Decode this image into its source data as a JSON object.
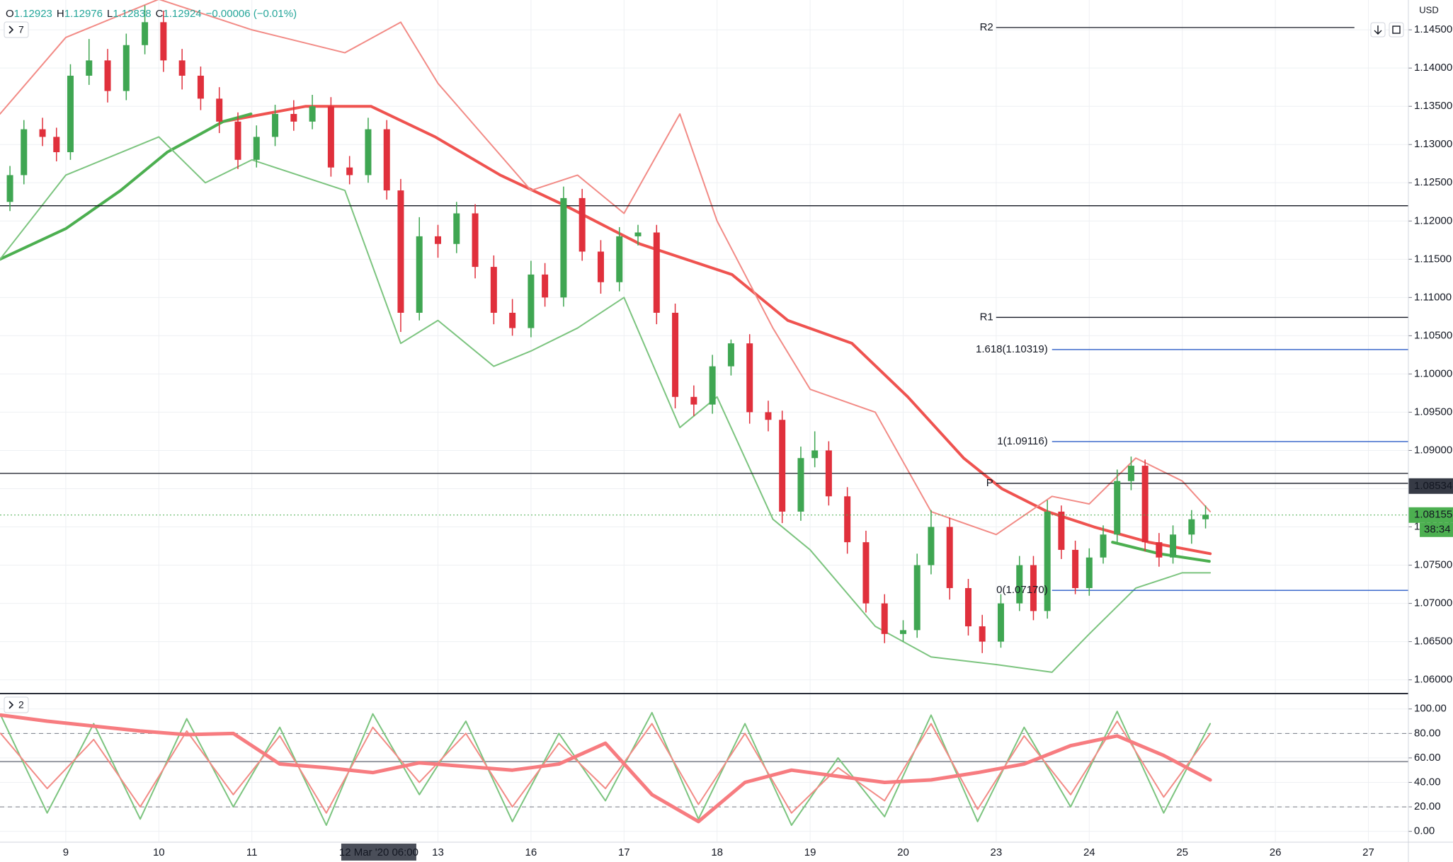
{
  "chart_data": {
    "type": "candlestick",
    "header": {
      "open_label": "O",
      "open": 1.12923,
      "high_label": "H",
      "high": 1.12976,
      "low_label": "L",
      "low": 1.12838,
      "close_label": "C",
      "close": 1.12924,
      "change": "−0.00006 (−0.01%)",
      "main_indicators": "7",
      "lower_indicators": "2"
    },
    "currency": "USD",
    "xlim": [
      -0.707,
      14.43
    ],
    "xticks": [
      {
        "value": 0,
        "label": "9"
      },
      {
        "value": 1,
        "label": "10"
      },
      {
        "value": 2,
        "label": "11"
      },
      {
        "value": 4,
        "label": "13"
      },
      {
        "value": 5,
        "label": "16"
      },
      {
        "value": 6,
        "label": "17"
      },
      {
        "value": 7,
        "label": "18"
      },
      {
        "value": 8,
        "label": "19"
      },
      {
        "value": 9,
        "label": "20"
      },
      {
        "value": 10,
        "label": "23"
      },
      {
        "value": 11,
        "label": "24"
      },
      {
        "value": 12,
        "label": "25"
      },
      {
        "value": 13,
        "label": "26"
      },
      {
        "value": 14,
        "label": "27"
      }
    ],
    "crosshair": {
      "x": 3.25,
      "label": "12 Mar '20  06:00"
    },
    "ylim": [
      1.0583,
      1.1489
    ],
    "yticks": [
      {
        "value": 1.06,
        "label": "1.06000"
      },
      {
        "value": 1.065,
        "label": "1.06500"
      },
      {
        "value": 1.07,
        "label": "1.07000"
      },
      {
        "value": 1.075,
        "label": "1.07500"
      },
      {
        "value": 1.08,
        "label": "1.08000"
      },
      {
        "value": 1.085,
        "label": "1.08500"
      },
      {
        "value": 1.09,
        "label": "1.09000"
      },
      {
        "value": 1.095,
        "label": "1.09500"
      },
      {
        "value": 1.1,
        "label": "1.10000"
      },
      {
        "value": 1.105,
        "label": "1.10500"
      },
      {
        "value": 1.11,
        "label": "1.11000"
      },
      {
        "value": 1.115,
        "label": "1.11500"
      },
      {
        "value": 1.12,
        "label": "1.12000"
      },
      {
        "value": 1.125,
        "label": "1.12500"
      },
      {
        "value": 1.13,
        "label": "1.13000"
      },
      {
        "value": 1.135,
        "label": "1.13500"
      },
      {
        "value": 1.14,
        "label": "1.14000"
      },
      {
        "value": 1.145,
        "label": "1.14500"
      }
    ],
    "grid": true,
    "up_color": "#3fa652",
    "down_color": "#e0303c",
    "candles": {
      "x": [
        -0.6,
        -0.45,
        -0.25,
        -0.1,
        0.05,
        0.25,
        0.45,
        0.65,
        0.85,
        1.05,
        1.25,
        1.45,
        1.65,
        1.85,
        2.05,
        2.25,
        2.45,
        2.65,
        2.85,
        3.05,
        3.25,
        3.45,
        3.6,
        3.8,
        4.0,
        4.2,
        4.4,
        4.6,
        4.8,
        5.0,
        5.15,
        5.35,
        5.55,
        5.75,
        5.95,
        6.15,
        6.35,
        6.55,
        6.75,
        6.95,
        7.15,
        7.35,
        7.55,
        7.7,
        7.9,
        8.05,
        8.2,
        8.4,
        8.6,
        8.8,
        9.0,
        9.15,
        9.3,
        9.5,
        9.7,
        9.85,
        10.05,
        10.25,
        10.4,
        10.55,
        10.7,
        10.85,
        11.0,
        11.15,
        11.3,
        11.45,
        11.6,
        11.75,
        11.9,
        12.1,
        12.25
      ],
      "open": [
        1.1225,
        1.126,
        1.132,
        1.131,
        1.129,
        1.139,
        1.141,
        1.137,
        1.143,
        1.146,
        1.141,
        1.139,
        1.136,
        1.133,
        1.128,
        1.131,
        1.134,
        1.133,
        1.135,
        1.127,
        1.126,
        1.132,
        1.124,
        1.108,
        1.118,
        1.117,
        1.121,
        1.114,
        1.108,
        1.106,
        1.113,
        1.11,
        1.123,
        1.116,
        1.112,
        1.118,
        1.1185,
        1.108,
        1.097,
        1.096,
        1.101,
        1.104,
        1.095,
        1.094,
        1.082,
        1.089,
        1.09,
        1.084,
        1.078,
        1.07,
        1.066,
        1.0665,
        1.075,
        1.08,
        1.072,
        1.067,
        1.065,
        1.07,
        1.075,
        1.069,
        1.082,
        1.077,
        1.072,
        1.076,
        1.079,
        1.086,
        1.088,
        1.078,
        1.076,
        1.079,
        1.081
      ],
      "high": [
        1.1272,
        1.1332,
        1.1335,
        1.1322,
        1.1405,
        1.1438,
        1.1425,
        1.1445,
        1.1482,
        1.1475,
        1.1425,
        1.1402,
        1.1375,
        1.1342,
        1.1325,
        1.1352,
        1.1358,
        1.1365,
        1.1362,
        1.1285,
        1.1335,
        1.1332,
        1.1255,
        1.1205,
        1.1195,
        1.1225,
        1.1222,
        1.1155,
        1.1098,
        1.1148,
        1.1145,
        1.1245,
        1.1242,
        1.1175,
        1.1192,
        1.1195,
        1.1195,
        1.1092,
        1.0985,
        1.1025,
        1.1045,
        1.1052,
        1.0965,
        1.0952,
        1.0905,
        1.0925,
        1.0912,
        1.0852,
        1.0795,
        1.0712,
        1.0678,
        1.0765,
        1.0822,
        1.0812,
        1.0732,
        1.0685,
        1.0712,
        1.0762,
        1.0762,
        1.0835,
        1.0828,
        1.0782,
        1.0772,
        1.0802,
        1.0875,
        1.0892,
        1.0888,
        1.0792,
        1.0802,
        1.0822,
        1.0828
      ],
      "low": [
        1.1213,
        1.1248,
        1.1298,
        1.1278,
        1.128,
        1.1378,
        1.1355,
        1.1358,
        1.1418,
        1.1395,
        1.1372,
        1.1345,
        1.1315,
        1.1268,
        1.127,
        1.1298,
        1.1318,
        1.132,
        1.1258,
        1.1248,
        1.125,
        1.1228,
        1.1055,
        1.107,
        1.1152,
        1.1158,
        1.1125,
        1.1065,
        1.105,
        1.1048,
        1.1088,
        1.1088,
        1.1148,
        1.1105,
        1.1108,
        1.1168,
        1.1065,
        1.0955,
        1.0945,
        1.0948,
        1.0998,
        1.0935,
        1.0925,
        1.0805,
        1.0808,
        1.0878,
        1.0828,
        1.0765,
        1.0688,
        1.0648,
        1.065,
        1.0655,
        1.0738,
        1.0705,
        1.0658,
        1.0635,
        1.0642,
        1.069,
        1.0678,
        1.068,
        1.0758,
        1.0712,
        1.071,
        1.0752,
        1.078,
        1.0848,
        1.0768,
        1.0748,
        1.0752,
        1.0778,
        1.0798
      ],
      "close": [
        1.126,
        1.132,
        1.131,
        1.129,
        1.139,
        1.141,
        1.137,
        1.143,
        1.146,
        1.141,
        1.139,
        1.136,
        1.133,
        1.128,
        1.131,
        1.134,
        1.133,
        1.135,
        1.127,
        1.126,
        1.132,
        1.124,
        1.108,
        1.118,
        1.117,
        1.121,
        1.114,
        1.108,
        1.106,
        1.113,
        1.11,
        1.123,
        1.116,
        1.112,
        1.118,
        1.1185,
        1.108,
        1.097,
        1.096,
        1.101,
        1.104,
        1.095,
        1.094,
        1.082,
        1.089,
        1.09,
        1.084,
        1.078,
        1.07,
        1.066,
        1.0665,
        1.075,
        1.08,
        1.072,
        1.067,
        1.065,
        1.07,
        1.075,
        1.069,
        1.082,
        1.077,
        1.072,
        1.076,
        1.079,
        1.086,
        1.088,
        1.078,
        1.076,
        1.079,
        1.081,
        1.0816
      ]
    },
    "lines": [
      {
        "color": "#ef5350",
        "width": 4,
        "x": [
          1.69,
          2.58,
          3.28,
          3.97,
          4.67,
          5.37,
          6.17,
          7.16,
          7.76,
          8.45,
          9.05,
          9.65,
          10.06,
          10.55,
          11.05,
          11.64,
          12.3
        ],
        "values": [
          1.133,
          1.135,
          1.135,
          1.131,
          1.126,
          1.122,
          1.117,
          1.113,
          1.107,
          1.104,
          1.097,
          1.089,
          1.085,
          1.082,
          1.08,
          1.078,
          1.0765
        ]
      },
      {
        "color": "#4caf50",
        "width": 4,
        "x": [
          -0.707,
          0,
          0.59,
          1.09,
          1.69,
          1.99
        ],
        "values": [
          1.115,
          1.119,
          1.124,
          1.129,
          1.133,
          1.134
        ]
      },
      {
        "color": "#4caf50",
        "width": 4,
        "x": [
          11.25,
          11.75,
          12.29
        ],
        "values": [
          1.078,
          1.0765,
          1.0755
        ]
      },
      {
        "color": "#f28b86",
        "width": 2,
        "x": [
          -0.707,
          0,
          1,
          2,
          3,
          3.6,
          4,
          5,
          5.5,
          6,
          6.6,
          7,
          7.6,
          8,
          8.7,
          9.3,
          10,
          10.6,
          11,
          11.5,
          12,
          12.3
        ],
        "values": [
          1.134,
          1.144,
          1.149,
          1.145,
          1.142,
          1.146,
          1.138,
          1.124,
          1.126,
          1.121,
          1.134,
          1.12,
          1.106,
          1.098,
          1.095,
          1.082,
          1.079,
          1.084,
          1.083,
          1.089,
          1.086,
          1.082
        ]
      },
      {
        "color": "#7cc47f",
        "width": 2,
        "x": [
          -0.707,
          0,
          1,
          1.5,
          2,
          3,
          3.6,
          4,
          4.6,
          5,
          5.5,
          6,
          6.6,
          7,
          7.6,
          8,
          8.7,
          9.3,
          10,
          10.6,
          11,
          11.5,
          12,
          12.3
        ],
        "values": [
          1.115,
          1.126,
          1.131,
          1.125,
          1.128,
          1.124,
          1.104,
          1.107,
          1.101,
          1.103,
          1.106,
          1.11,
          1.093,
          1.097,
          1.081,
          1.077,
          1.067,
          1.063,
          1.062,
          1.061,
          1.066,
          1.072,
          1.074,
          1.074
        ]
      }
    ],
    "hlines": [
      {
        "value": 1.122,
        "color": "#131722"
      },
      {
        "value": 1.087,
        "color": "#131722"
      }
    ],
    "pivots": [
      {
        "name": "R2",
        "value": 1.1453,
        "to": 13.85
      },
      {
        "name": "R1",
        "value": 1.1074,
        "to": 14.43
      },
      {
        "name": "P",
        "value": 1.0857,
        "to": 14.43
      }
    ],
    "fib": [
      {
        "value": 1.10319,
        "label": "1.618(1.10319)"
      },
      {
        "value": 1.09116,
        "label": "1(1.09116)"
      },
      {
        "value": 1.0717,
        "label": "0(1.07170)"
      }
    ],
    "fib_color": "#2a5cc7",
    "price_labels": [
      {
        "value": 1.08534,
        "label": "1.08534",
        "color": "#363a45"
      },
      {
        "value": 1.08155,
        "label": "1.08155",
        "color": "#4caf50",
        "countdown": "38:34"
      }
    ],
    "oscillator": {
      "ylim": [
        -8.3,
        112
      ],
      "yticks": [
        {
          "value": 0,
          "label": "0.00"
        },
        {
          "value": 20,
          "label": "20.00"
        },
        {
          "value": 40,
          "label": "40.00"
        },
        {
          "value": 60,
          "label": "60.00"
        },
        {
          "value": 80,
          "label": "80.00"
        },
        {
          "value": 100,
          "label": "100.00"
        }
      ],
      "dashed": [
        80,
        20
      ],
      "midline": 57,
      "x": [
        -0.7,
        -0.2,
        0.3,
        0.8,
        1.3,
        1.8,
        2.3,
        2.8,
        3.3,
        3.8,
        4.3,
        4.8,
        5.3,
        5.8,
        6.3,
        6.8,
        7.3,
        7.8,
        8.3,
        8.8,
        9.3,
        9.8,
        10.3,
        10.8,
        11.3,
        11.8,
        12.3
      ],
      "series": [
        {
          "color": "#7cc47f",
          "width": 2,
          "values": [
            95,
            15,
            88,
            10,
            92,
            20,
            85,
            5,
            96,
            30,
            90,
            8,
            80,
            25,
            97,
            10,
            88,
            5,
            60,
            12,
            95,
            8,
            85,
            20,
            98,
            15,
            88
          ]
        },
        {
          "color": "#f28b86",
          "width": 2,
          "values": [
            80,
            35,
            75,
            20,
            82,
            30,
            78,
            15,
            85,
            40,
            80,
            20,
            72,
            35,
            88,
            22,
            80,
            15,
            52,
            25,
            88,
            18,
            78,
            30,
            90,
            28,
            80
          ]
        },
        {
          "color": "#f77c80",
          "width": 5,
          "values": [
            95,
            90,
            86,
            82,
            79,
            80,
            55,
            52,
            48,
            56,
            53,
            50,
            55,
            72,
            30,
            8,
            40,
            50,
            45,
            40,
            42,
            48,
            55,
            70,
            78,
            62,
            42
          ]
        }
      ]
    }
  }
}
